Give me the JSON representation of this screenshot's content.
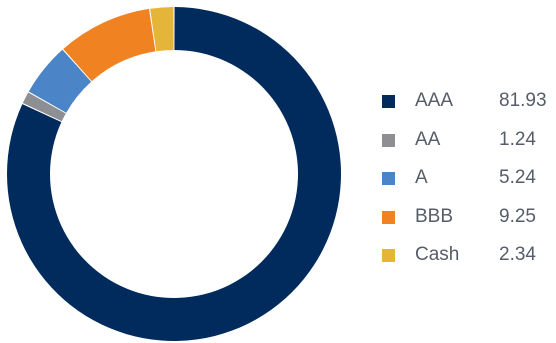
{
  "chart_data": {
    "type": "pie",
    "donut": true,
    "legend_position": "right",
    "title": "",
    "series": [
      {
        "categories": [
          "AAA",
          "AA",
          "A",
          "BBB",
          "Cash"
        ],
        "values": [
          81.93,
          1.24,
          5.24,
          9.25,
          2.34
        ],
        "value_labels": [
          "81.93",
          "1.24",
          "5.24",
          "9.25",
          "2.34"
        ],
        "colors": [
          "#002b5c",
          "#8d8f93",
          "#4b84c7",
          "#f08222",
          "#e5b53a"
        ]
      }
    ]
  }
}
